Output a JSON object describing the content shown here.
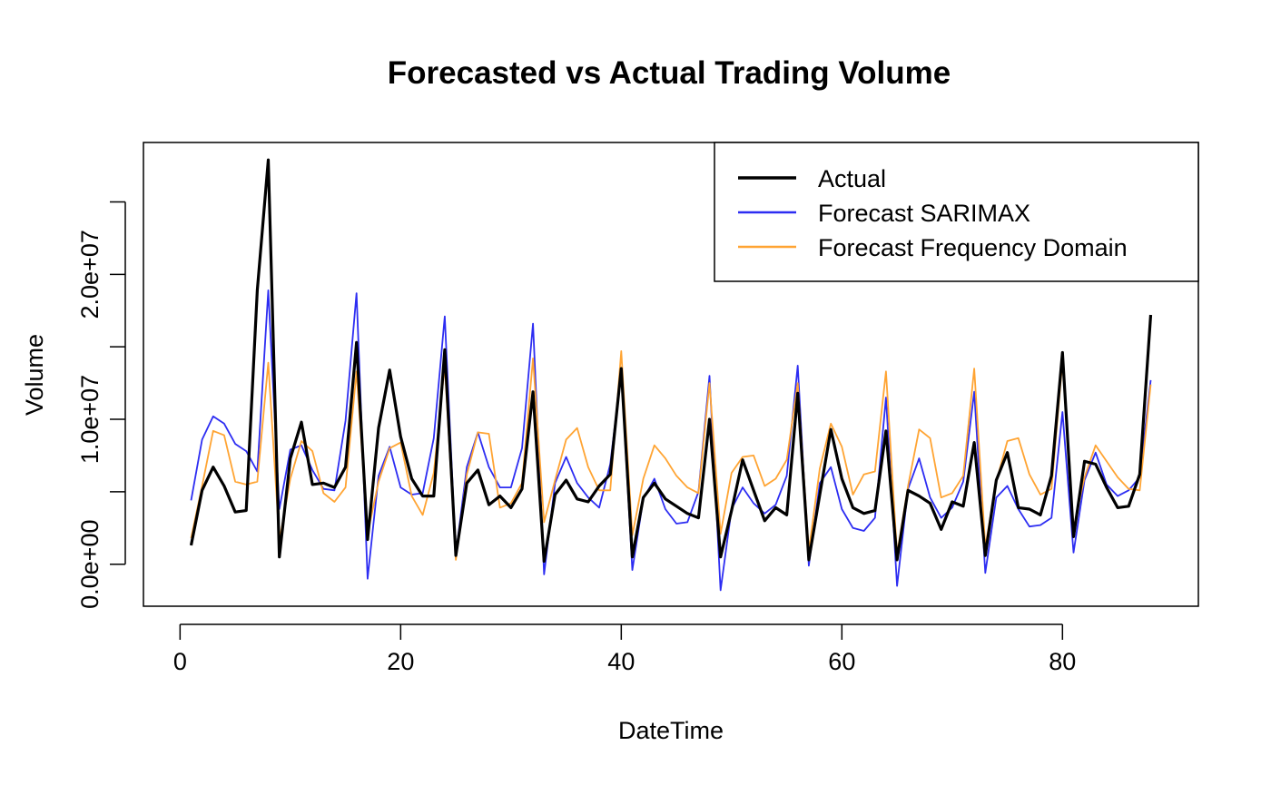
{
  "chart_data": {
    "type": "line",
    "title": "Forecasted vs Actual Trading Volume",
    "xlabel": "DateTime",
    "ylabel": "Volume",
    "xlim": [
      -3.32,
      92.32
    ],
    "ylim": [
      -2900000,
      29100000
    ],
    "xticks": [
      0,
      20,
      40,
      60,
      80
    ],
    "xtick_labels": [
      "0",
      "20",
      "40",
      "60",
      "80"
    ],
    "yticks": [
      0,
      5000000,
      10000000,
      15000000,
      20000000,
      25000000
    ],
    "ytick_labels": [
      "0.0e+00",
      "",
      "1.0e+07",
      "",
      "2.0e+07",
      ""
    ],
    "legend_position": "top-right",
    "grid": false,
    "x": [
      1,
      2,
      3,
      4,
      5,
      6,
      7,
      8,
      9,
      10,
      11,
      12,
      13,
      14,
      15,
      16,
      17,
      18,
      19,
      20,
      21,
      22,
      23,
      24,
      25,
      26,
      27,
      28,
      29,
      30,
      31,
      32,
      33,
      34,
      35,
      36,
      37,
      38,
      39,
      40,
      41,
      42,
      43,
      44,
      45,
      46,
      47,
      48,
      49,
      50,
      51,
      52,
      53,
      54,
      55,
      56,
      57,
      58,
      59,
      60,
      61,
      62,
      63,
      64,
      65,
      66,
      67,
      68,
      69,
      70,
      71,
      72,
      73,
      74,
      75,
      76,
      77,
      78,
      79,
      80,
      81,
      82,
      83,
      84,
      85,
      86,
      87,
      88
    ],
    "series": [
      {
        "name": "Actual",
        "color": "#000000",
        "values": [
          1300000,
          5100000,
          6700000,
          5400000,
          3600000,
          3700000,
          18900000,
          27900000,
          500000,
          7300000,
          9800000,
          5500000,
          5600000,
          5300000,
          6700000,
          15300000,
          1700000,
          9400000,
          13400000,
          8800000,
          5900000,
          4700000,
          4700000,
          14800000,
          600000,
          5600000,
          6500000,
          4100000,
          4700000,
          3900000,
          5200000,
          11900000,
          200000,
          4800000,
          5800000,
          4500000,
          4300000,
          5400000,
          6200000,
          13500000,
          500000,
          4600000,
          5600000,
          4500000,
          4000000,
          3500000,
          3200000,
          10000000,
          500000,
          3700000,
          7200000,
          5100000,
          3000000,
          3900000,
          3400000,
          11800000,
          300000,
          4800000,
          9300000,
          5900000,
          3900000,
          3500000,
          3700000,
          9200000,
          300000,
          5100000,
          4700000,
          4200000,
          2400000,
          4300000,
          4000000,
          8400000,
          600000,
          5800000,
          7700000,
          3900000,
          3800000,
          3400000,
          6100000,
          14600000,
          1900000,
          7100000,
          6900000,
          5300000,
          3900000,
          4000000,
          6200000,
          17200000
        ]
      },
      {
        "name": "Forecast SARIMAX",
        "color": "#2d2df2",
        "values": [
          4400000,
          8600000,
          10200000,
          9700000,
          8300000,
          7800000,
          6400000,
          18900000,
          3800000,
          7900000,
          8200000,
          6500000,
          5200000,
          5100000,
          9900000,
          18700000,
          -1000000,
          6100000,
          8100000,
          5300000,
          4800000,
          4900000,
          8700000,
          17100000,
          700000,
          6700000,
          9100000,
          6700000,
          5300000,
          5300000,
          8000000,
          16600000,
          -700000,
          5600000,
          7400000,
          5600000,
          4600000,
          3900000,
          6900000,
          13300000,
          -400000,
          4500000,
          5900000,
          3800000,
          2800000,
          2900000,
          5000000,
          13000000,
          -1800000,
          3800000,
          5300000,
          4200000,
          3500000,
          4100000,
          6100000,
          13700000,
          -100000,
          5600000,
          6700000,
          3800000,
          2500000,
          2300000,
          3200000,
          11500000,
          -1500000,
          5200000,
          7300000,
          4600000,
          3200000,
          3900000,
          5700000,
          11900000,
          -600000,
          4600000,
          5400000,
          3800000,
          2600000,
          2700000,
          3200000,
          10500000,
          800000,
          5800000,
          7700000,
          5500000,
          4700000,
          5100000,
          6000000,
          12700000
        ]
      },
      {
        "name": "Forecast Frequency Domain",
        "color": "#ffa433",
        "values": [
          1800000,
          5400000,
          9200000,
          8900000,
          5700000,
          5500000,
          5700000,
          13900000,
          1600000,
          5900000,
          8500000,
          7800000,
          4900000,
          4300000,
          5300000,
          13300000,
          2100000,
          5700000,
          8000000,
          8400000,
          4700000,
          3400000,
          6300000,
          13700000,
          300000,
          6200000,
          9100000,
          9000000,
          3900000,
          4200000,
          5600000,
          14200000,
          2900000,
          5800000,
          8600000,
          9400000,
          6700000,
          5100000,
          5100000,
          14700000,
          2000000,
          5900000,
          8200000,
          7300000,
          6100000,
          5300000,
          4900000,
          12500000,
          2100000,
          6300000,
          7400000,
          7500000,
          5400000,
          5900000,
          7200000,
          12500000,
          900000,
          6600000,
          9700000,
          8100000,
          4800000,
          6200000,
          6400000,
          13300000,
          700000,
          5400000,
          9300000,
          8700000,
          4600000,
          4900000,
          6100000,
          13500000,
          1200000,
          5700000,
          8500000,
          8700000,
          6200000,
          4800000,
          5200000,
          14000000,
          2500000,
          6000000,
          8200000,
          7100000,
          6000000,
          5200000,
          5100000,
          12400000
        ]
      }
    ]
  }
}
